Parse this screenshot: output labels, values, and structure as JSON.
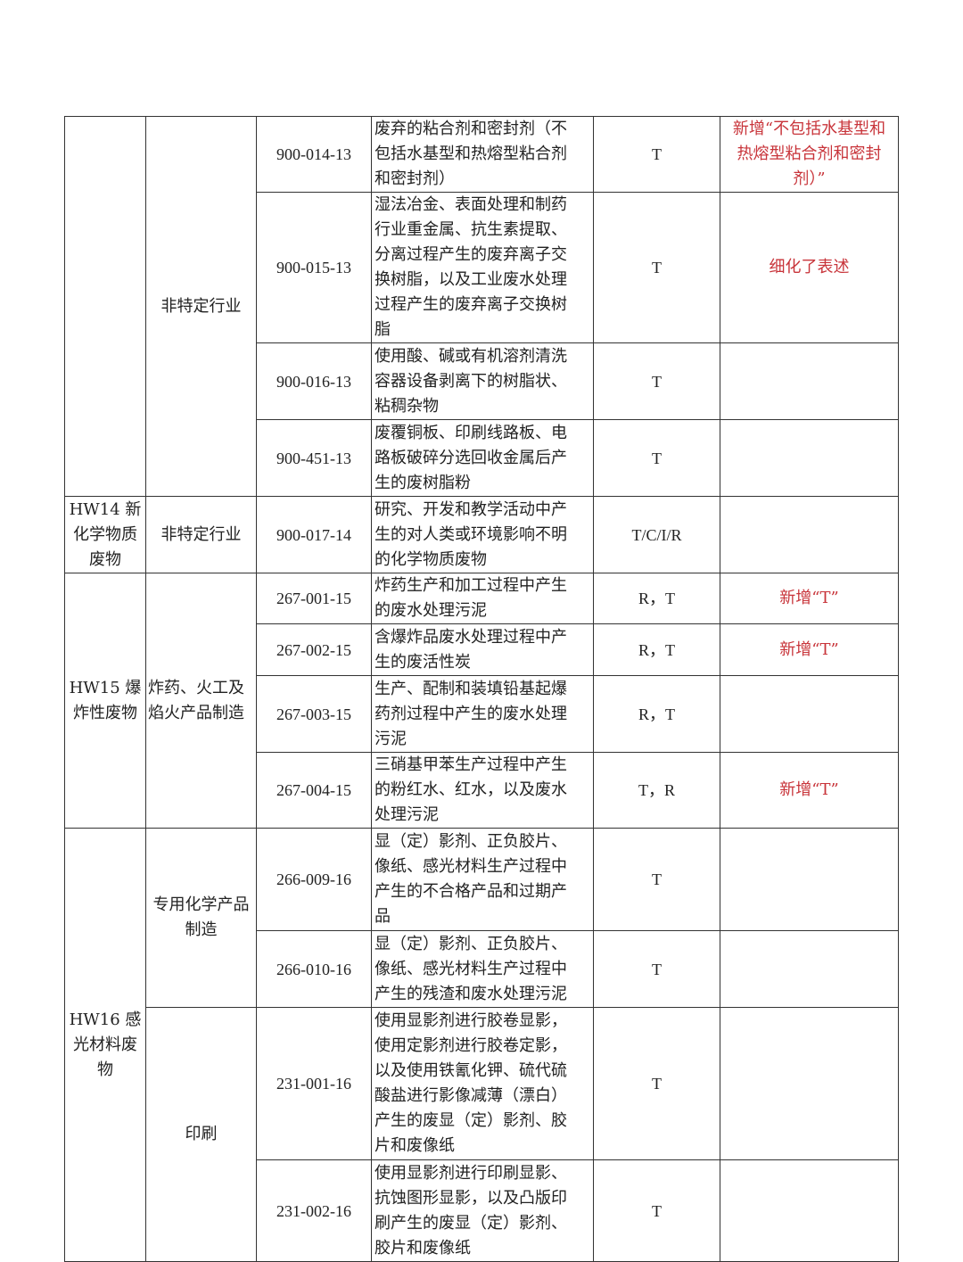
{
  "rows": [
    {
      "code": "900-014-13",
      "desc": "废弃的粘合剂和密封剂（不包括水基型和热熔型粘合剂和密封剂）",
      "hazard": "T",
      "remark": "新增“不包括水基型和热熔型粘合剂和密封剂）”"
    },
    {
      "code": "900-015-13",
      "desc": "湿法冶金、表面处理和制药行业重金属、抗生素提取、分离过程产生的废弃离子交换树脂，以及工业废水处理过程产生的废弃离子交换树脂",
      "hazard": "T",
      "remark": "细化了表述"
    },
    {
      "code": "900-016-13",
      "desc": "使用酸、碱或有机溶剂清洗容器设备剥离下的树脂状、粘稠杂物",
      "hazard": "T",
      "remark": ""
    },
    {
      "code": "900-451-13",
      "desc": "废覆铜板、印刷线路板、电路板破碎分选回收金属后产生的废树脂粉",
      "hazard": "T",
      "remark": ""
    },
    {
      "code": "900-017-14",
      "desc": "研究、开发和教学活动中产生的对人类或环境影响不明的化学物质废物",
      "hazard": "T/C/I/R",
      "remark": ""
    },
    {
      "code": "267-001-15",
      "desc": "炸药生产和加工过程中产生的废水处理污泥",
      "hazard": "R，T",
      "remark": "新增“T”"
    },
    {
      "code": "267-002-15",
      "desc": "含爆炸品废水处理过程中产生的废活性炭",
      "hazard": "R，T",
      "remark": "新增“T”"
    },
    {
      "code": "267-003-15",
      "desc": "生产、配制和装填铅基起爆药剂过程中产生的废水处理污泥",
      "hazard": "R，T",
      "remark": ""
    },
    {
      "code": "267-004-15",
      "desc": "三硝基甲苯生产过程中产生的粉红水、红水，以及废水处理污泥",
      "hazard": "T，R",
      "remark": "新增“T”"
    },
    {
      "code": "266-009-16",
      "desc": "显（定）影剂、正负胶片、像纸、感光材料生产过程中产生的不合格产品和过期产品",
      "hazard": "T",
      "remark": ""
    },
    {
      "code": "266-010-16",
      "desc": "显（定）影剂、正负胶片、像纸、感光材料生产过程中产生的残渣和废水处理污泥",
      "hazard": "T",
      "remark": ""
    },
    {
      "code": "231-001-16",
      "desc": "使用显影剂进行胶卷显影，使用定影剂进行胶卷定影，以及使用铁氰化钾、硫代硫酸盐进行影像减薄（漂白）产生的废显（定）影剂、胶片和废像纸",
      "hazard": "T",
      "remark": ""
    },
    {
      "code": "231-002-16",
      "desc": "使用显影剂进行印刷显影、抗蚀图形显影，以及凸版印刷产生的废显（定）影剂、胶片和废像纸",
      "hazard": "T",
      "remark": ""
    }
  ],
  "categories": {
    "hw14": "HW14 新化学物质废物",
    "hw15": "HW15 爆炸性废物",
    "hw16": "HW16 感光材料废物"
  },
  "industries": {
    "nonspecific": "非特定行业",
    "explosives": "炸药、火工及焰火产品制造",
    "chemical": "专用化学产品制造",
    "printing": "印刷"
  },
  "colors": {
    "remark": "#c8343a"
  }
}
